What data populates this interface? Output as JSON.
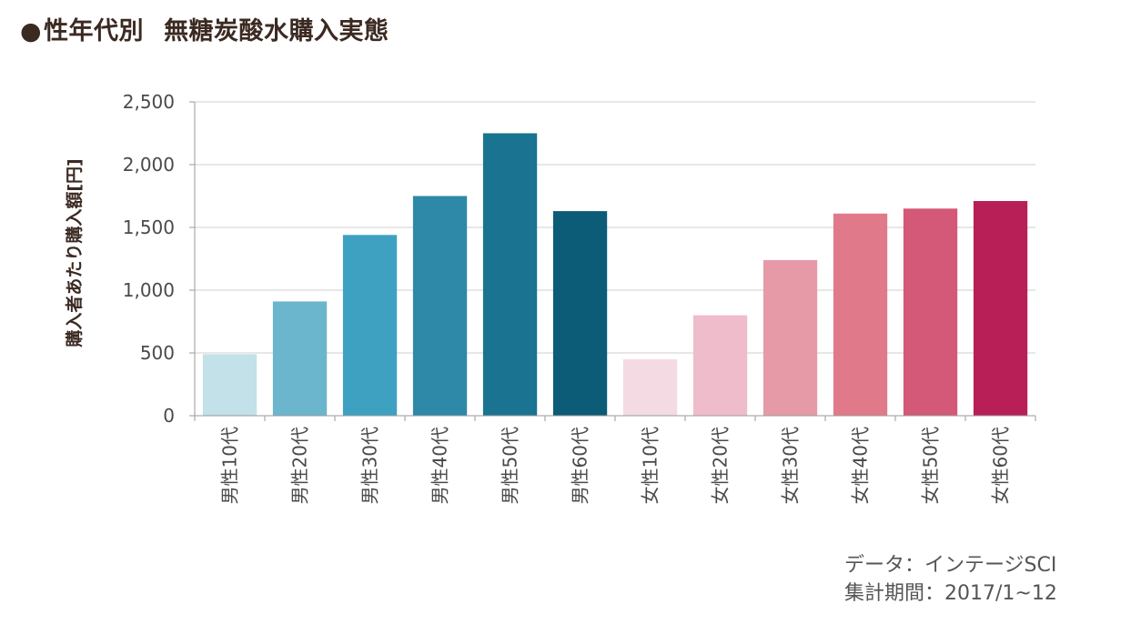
{
  "title": {
    "bullet": "●",
    "part1": "性年代別",
    "part2": "無糖炭酸水購入実態"
  },
  "footer": {
    "source": "データ：インテージSCI",
    "period": "集計期間：2017/1~12"
  },
  "chart_data": {
    "type": "bar",
    "ylabel": "購入者あたり購入額[円]",
    "ylim": [
      0,
      2500
    ],
    "yticks": [
      0,
      500,
      1000,
      1500,
      2000,
      2500
    ],
    "ytick_labels": [
      "0",
      "500",
      "1,000",
      "1,500",
      "2,000",
      "2,500"
    ],
    "grid": true,
    "categories": [
      "男性10代",
      "男性20代",
      "男性30代",
      "男性40代",
      "男性50代",
      "男性60代",
      "女性10代",
      "女性20代",
      "女性30代",
      "女性40代",
      "女性50代",
      "女性60代"
    ],
    "values": [
      490,
      910,
      1440,
      1750,
      2250,
      1630,
      450,
      800,
      1240,
      1610,
      1650,
      1710
    ],
    "colors": [
      "#c2e1e8",
      "#6bb6cc",
      "#3fa1c2",
      "#2e88a8",
      "#1a7391",
      "#0c5b77",
      "#f4dbe3",
      "#efbccb",
      "#e69aa8",
      "#e07a8a",
      "#d45878",
      "#b81f57"
    ]
  }
}
